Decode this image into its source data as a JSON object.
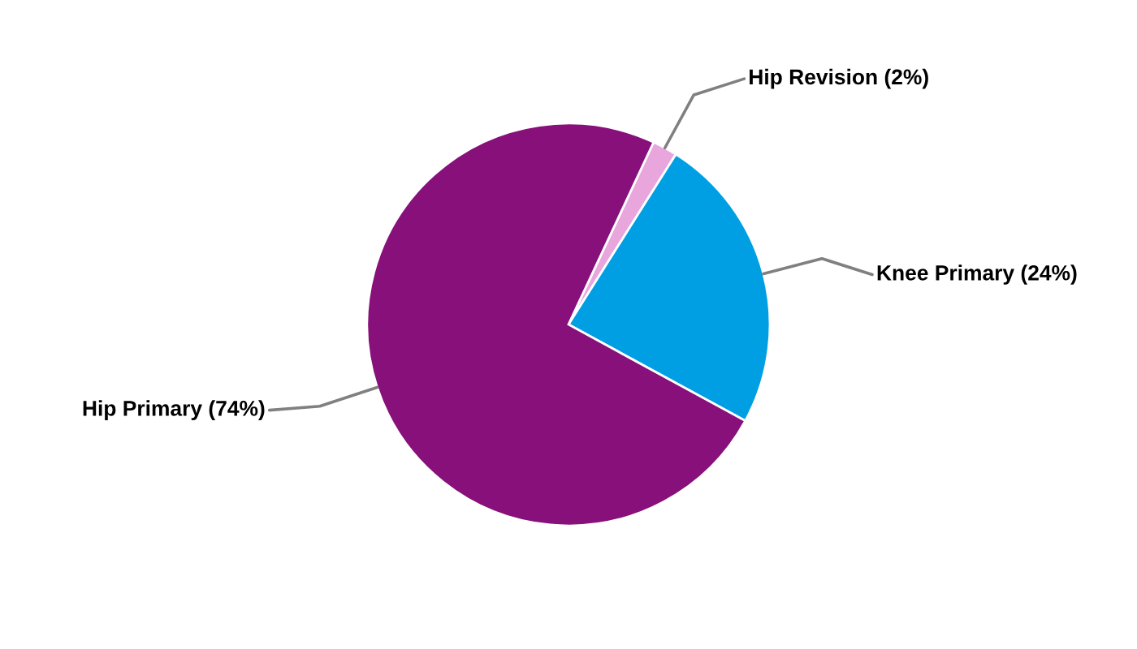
{
  "chart_data": {
    "type": "pie",
    "categories": [
      "Hip Revision",
      "Knee Primary",
      "Hip Primary"
    ],
    "values": [
      2,
      24,
      74
    ],
    "value_labels": [
      "(2%)",
      "(24%)",
      "(74%)"
    ],
    "colors": [
      "#e8a6dc",
      "#009fe3",
      "#87107a"
    ],
    "legend": false
  }
}
